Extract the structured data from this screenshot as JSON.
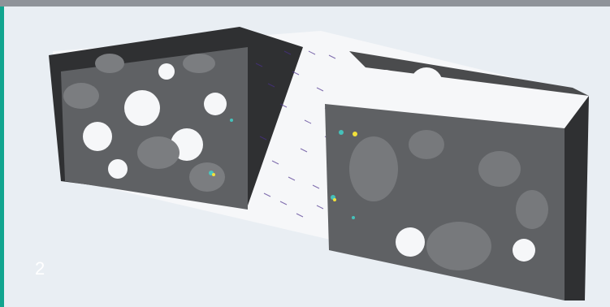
{
  "figure": {
    "number": "2"
  },
  "colors": {
    "top_bar": "#8f9399",
    "accent": "#11a58f",
    "background": "#e9eef3",
    "solid_dark": "#3b3c3e",
    "solid_face": "#66686b",
    "flow_vectors": "#4a2f8c",
    "highlight": "#3fd9d0"
  }
}
